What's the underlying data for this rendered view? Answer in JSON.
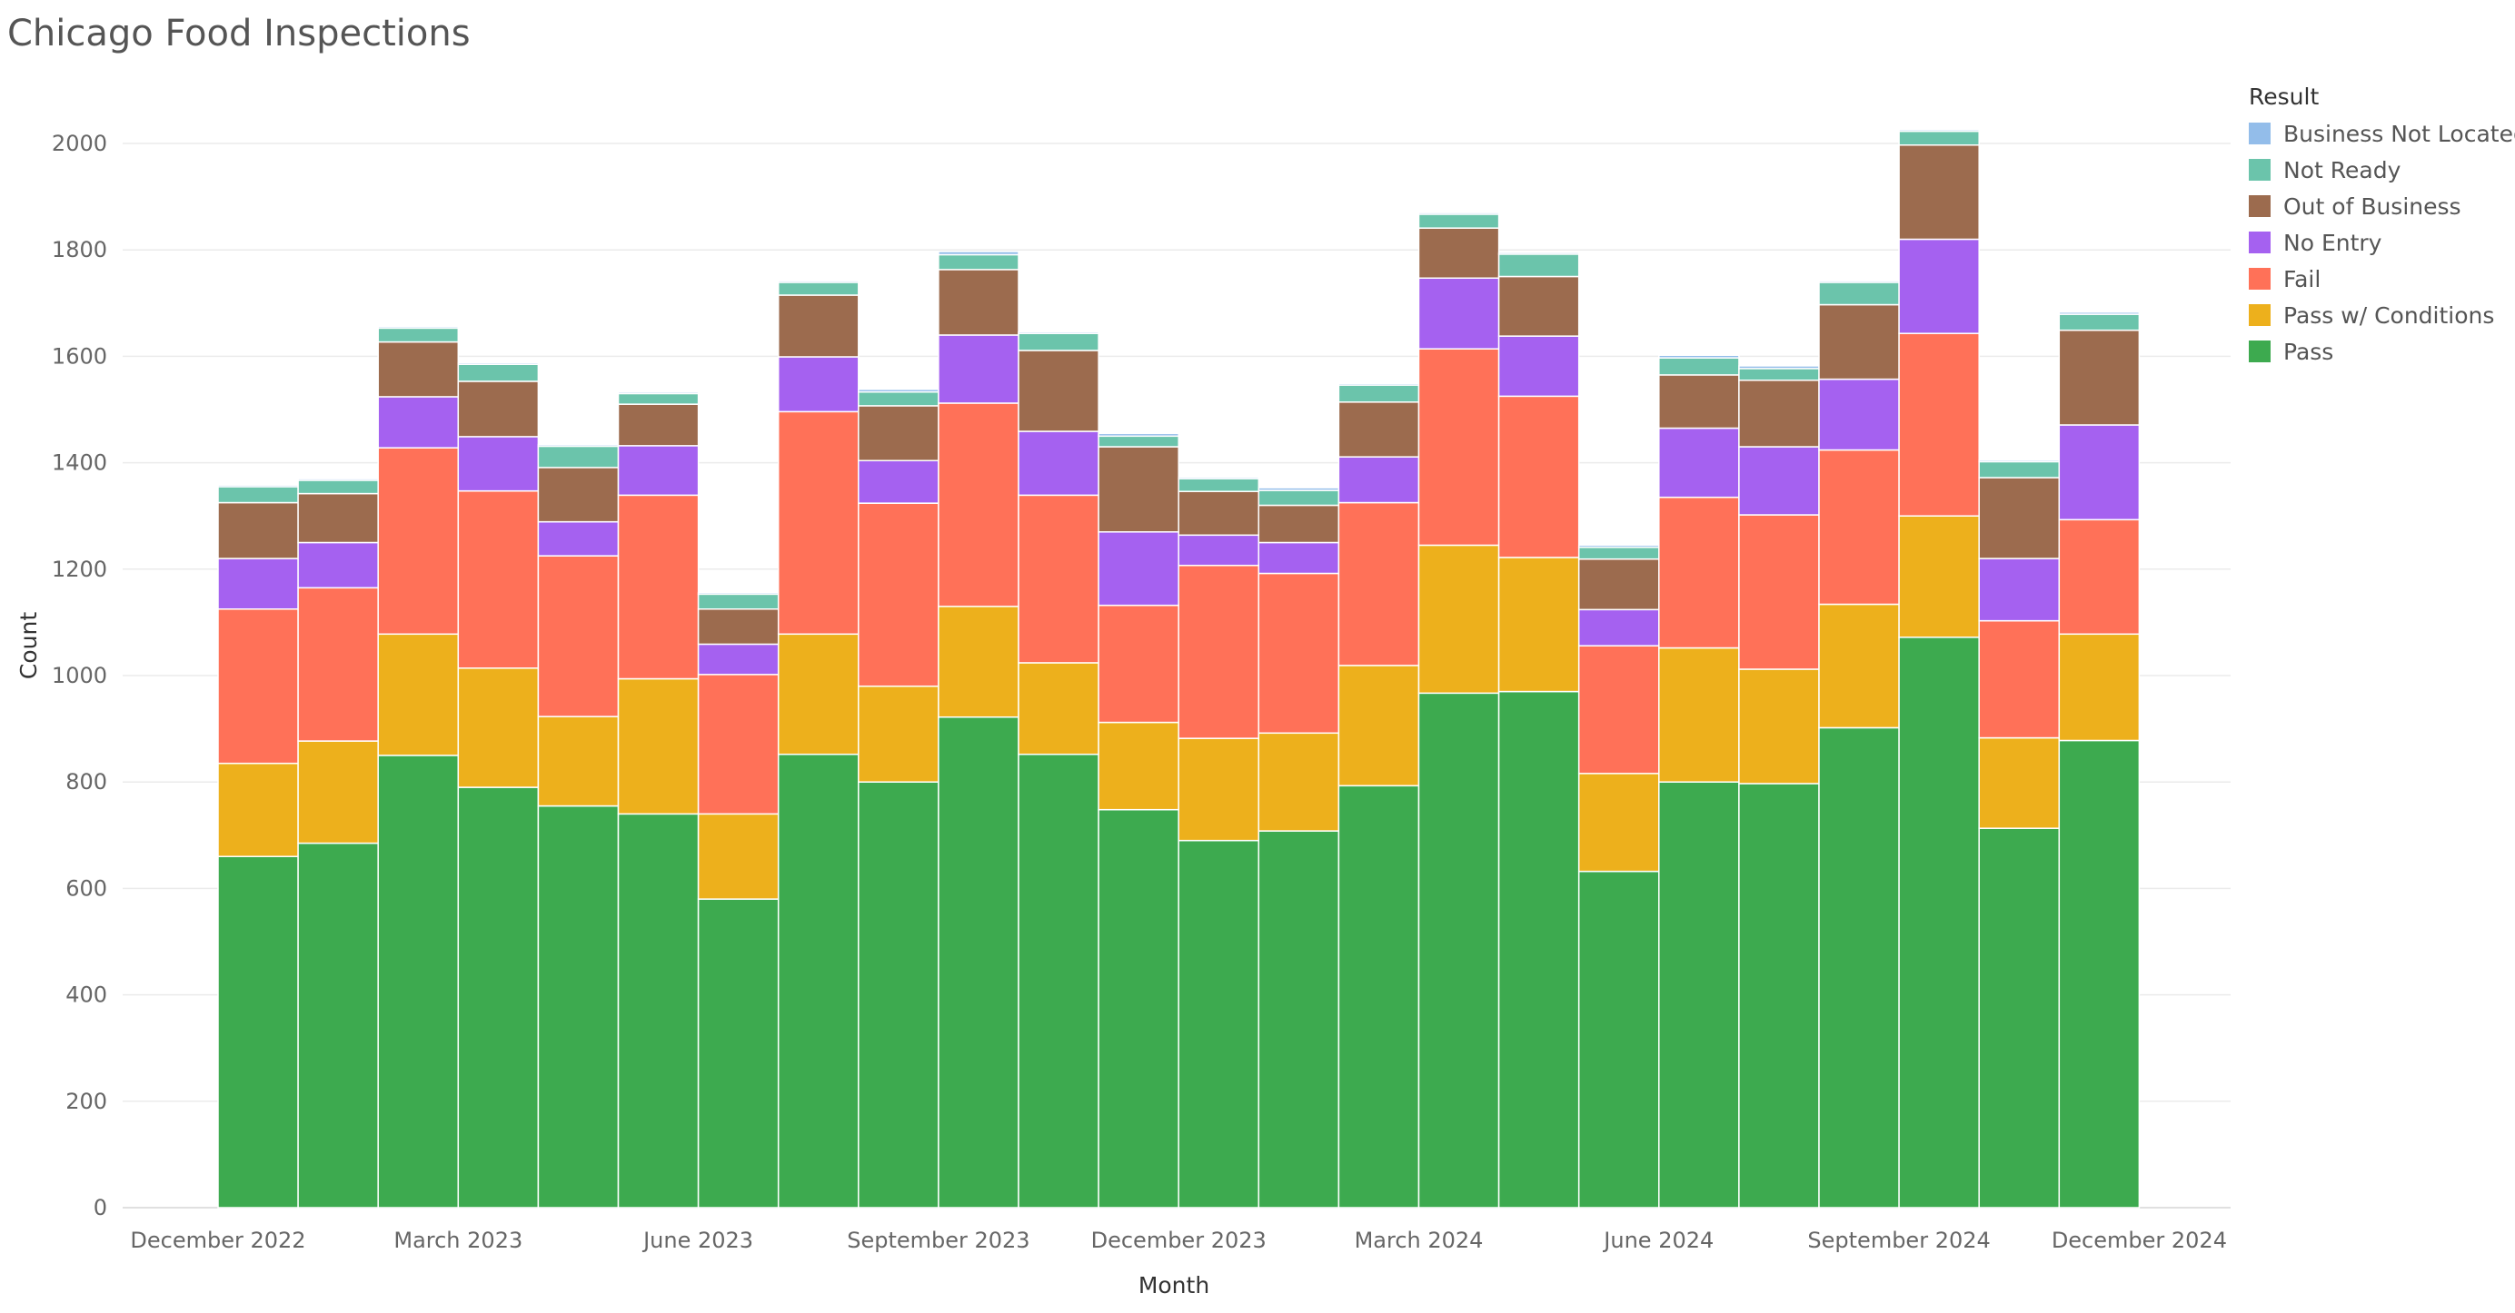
{
  "chart_data": {
    "type": "bar",
    "stacked": true,
    "title": "Chicago Food Inspections",
    "xlabel": "Month",
    "ylabel": "Count",
    "ylim": [
      0,
      2100
    ],
    "yticks": [
      0,
      200,
      400,
      600,
      800,
      1000,
      1200,
      1400,
      1600,
      1800,
      2000
    ],
    "grid": true,
    "legend_position": "top-right",
    "legend_title": "Result",
    "categories": [
      "2023-01",
      "2023-02",
      "2023-03",
      "2023-04",
      "2023-05",
      "2023-06",
      "2023-07",
      "2023-08",
      "2023-09",
      "2023-10",
      "2023-11",
      "2023-12",
      "2024-01",
      "2024-02",
      "2024-03",
      "2024-04",
      "2024-05",
      "2024-06",
      "2024-07",
      "2024-08",
      "2024-09",
      "2024-10",
      "2024-11",
      "2024-12"
    ],
    "x_tick_labels": [
      {
        "label": "December 2022",
        "month": "2022-12"
      },
      {
        "label": "March 2023",
        "month": "2023-03"
      },
      {
        "label": "June 2023",
        "month": "2023-06"
      },
      {
        "label": "September 2023",
        "month": "2023-09"
      },
      {
        "label": "December 2023",
        "month": "2023-12"
      },
      {
        "label": "March 2024",
        "month": "2024-03"
      },
      {
        "label": "June 2024",
        "month": "2024-06"
      },
      {
        "label": "September 2024",
        "month": "2024-09"
      },
      {
        "label": "December 2024",
        "month": "2024-12"
      }
    ],
    "series": [
      {
        "name": "Pass",
        "color": "#3DAA4F",
        "values": [
          660,
          685,
          850,
          790,
          755,
          740,
          580,
          852,
          800,
          922,
          852,
          748,
          690,
          708,
          793,
          967,
          970,
          632,
          800,
          797,
          902,
          1072,
          713,
          878
        ]
      },
      {
        "name": "Pass w/ Conditions",
        "color": "#EDB01C",
        "values": [
          175,
          192,
          228,
          224,
          168,
          254,
          160,
          226,
          180,
          208,
          172,
          164,
          192,
          184,
          226,
          278,
          252,
          184,
          252,
          215,
          232,
          228,
          170,
          200
        ]
      },
      {
        "name": "Fail",
        "color": "#FF7158",
        "values": [
          290,
          288,
          350,
          333,
          302,
          345,
          262,
          418,
          344,
          382,
          315,
          220,
          325,
          300,
          306,
          369,
          303,
          240,
          283,
          290,
          290,
          343,
          220,
          215
        ]
      },
      {
        "name": "No Entry",
        "color": "#A561F0",
        "values": [
          95,
          85,
          96,
          102,
          64,
          93,
          57,
          103,
          80,
          128,
          120,
          138,
          57,
          58,
          86,
          133,
          113,
          68,
          130,
          128,
          133,
          177,
          117,
          178
        ]
      },
      {
        "name": "Out of Business",
        "color": "#9C6B4E",
        "values": [
          105,
          92,
          103,
          104,
          102,
          78,
          66,
          116,
          103,
          123,
          152,
          160,
          82,
          70,
          103,
          94,
          112,
          95,
          100,
          125,
          140,
          177,
          152,
          178
        ]
      },
      {
        "name": "Not Ready",
        "color": "#6BC4AB",
        "values": [
          30,
          25,
          26,
          32,
          40,
          20,
          28,
          24,
          26,
          28,
          32,
          20,
          24,
          28,
          32,
          26,
          42,
          22,
          32,
          22,
          42,
          26,
          30,
          30
        ]
      },
      {
        "name": "Business Not Located",
        "color": "#93BDEA",
        "values": [
          3,
          3,
          3,
          3,
          3,
          3,
          3,
          3,
          5,
          6,
          3,
          5,
          3,
          5,
          3,
          3,
          3,
          4,
          5,
          5,
          3,
          3,
          3,
          4
        ]
      }
    ],
    "legend_order": [
      "Business Not Located",
      "Not Ready",
      "Out of Business",
      "No Entry",
      "Fail",
      "Pass w/ Conditions",
      "Pass"
    ]
  }
}
